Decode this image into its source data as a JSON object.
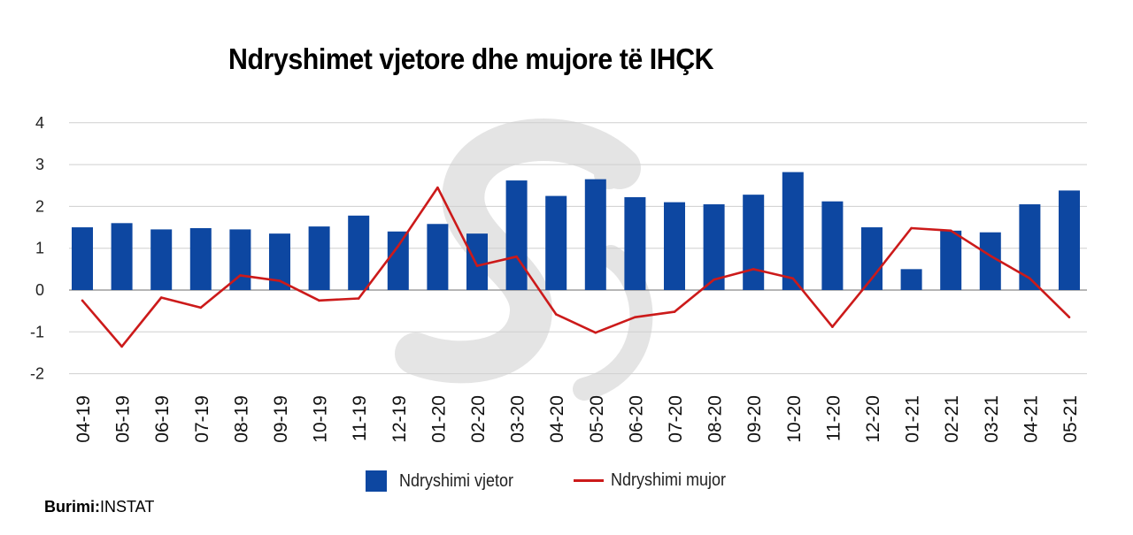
{
  "chart_data": {
    "type": "bar",
    "title": "Ndryshimet vjetore dhe mujore të IHÇK",
    "categories": [
      "04-19",
      "05-19",
      "06-19",
      "07-19",
      "08-19",
      "09-19",
      "10-19",
      "11-19",
      "12-19",
      "01-20",
      "02-20",
      "03-20",
      "04-20",
      "05-20",
      "06-20",
      "07-20",
      "08-20",
      "09-20",
      "10-20",
      "11-20",
      "12-20",
      "01-21",
      "02-21",
      "03-21",
      "04-21",
      "05-21"
    ],
    "series": [
      {
        "name": "Ndryshimi vjetor",
        "type": "bar",
        "color": "#0D47A1",
        "values": [
          1.5,
          1.6,
          1.45,
          1.48,
          1.45,
          1.35,
          1.52,
          1.78,
          1.4,
          1.58,
          1.35,
          2.62,
          2.25,
          2.65,
          2.22,
          2.1,
          2.05,
          2.28,
          2.82,
          2.12,
          1.5,
          0.5,
          1.42,
          1.38,
          2.05,
          2.38
        ]
      },
      {
        "name": "Ndryshimi mujor",
        "type": "line",
        "color": "#CC1A1A",
        "values": [
          -0.25,
          -1.35,
          -0.18,
          -0.42,
          0.35,
          0.22,
          -0.25,
          -0.2,
          1.05,
          2.45,
          0.58,
          0.8,
          -0.58,
          -1.02,
          -0.65,
          -0.52,
          0.25,
          0.5,
          0.28,
          -0.88,
          0.28,
          1.48,
          1.42,
          0.82,
          0.28,
          -0.65
        ]
      }
    ],
    "y_ticks": [
      "4",
      "3",
      "2",
      "1",
      "0",
      "-1",
      "-2"
    ],
    "ylim": [
      -2,
      4
    ],
    "grid": true,
    "legend": "bottom"
  },
  "legend": {
    "bar_label": "Ndryshimi vjetor",
    "line_label": "Ndryshimi mujor"
  },
  "source": {
    "label": "Burimi:",
    "value": "INSTAT"
  }
}
